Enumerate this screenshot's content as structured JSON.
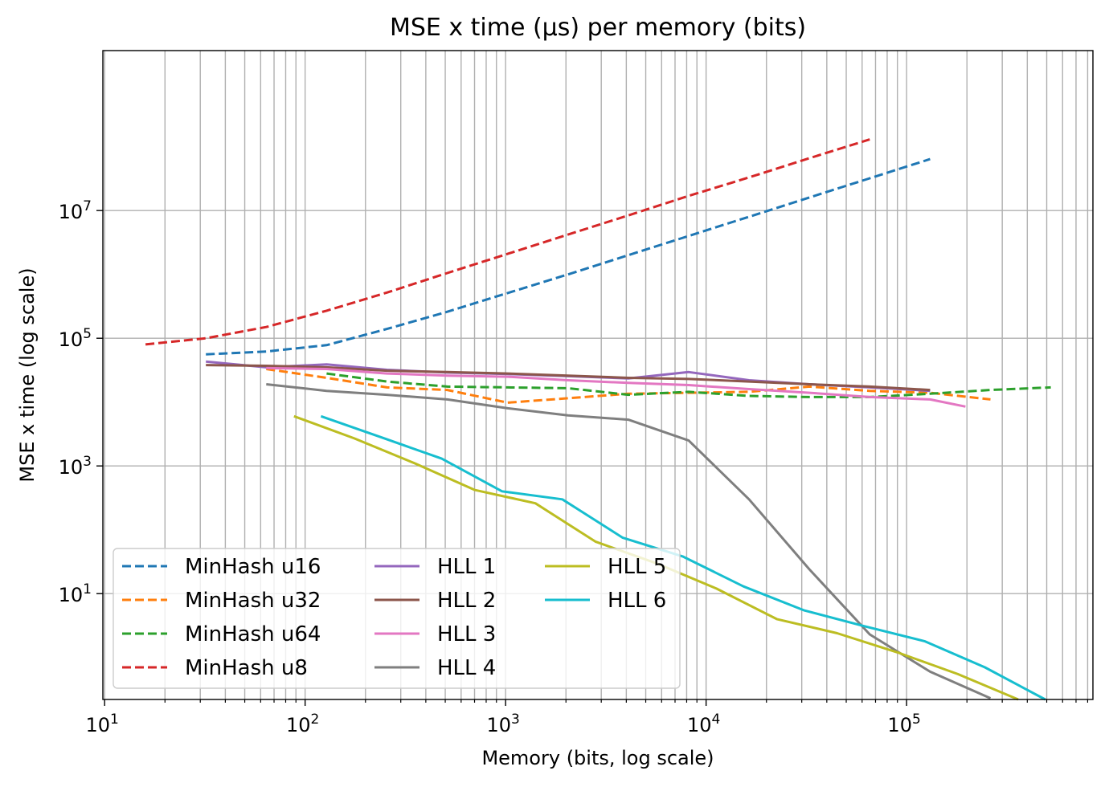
{
  "chart_data": {
    "type": "line",
    "title": "MSE x time (µs) per memory (bits)",
    "xlabel": "Memory (bits, log scale)",
    "ylabel": "MSE x time (log scale)",
    "xscale": "log",
    "yscale": "log",
    "xlim": [
      9.8,
      850000
    ],
    "ylim": [
      0.22,
      3200000000
    ],
    "grid": {
      "x": "major+minor",
      "y": "major"
    },
    "x_ticks": [
      {
        "base": "10",
        "exp": "1",
        "value": 10
      },
      {
        "base": "10",
        "exp": "2",
        "value": 100
      },
      {
        "base": "10",
        "exp": "3",
        "value": 1000
      },
      {
        "base": "10",
        "exp": "4",
        "value": 10000
      },
      {
        "base": "10",
        "exp": "5",
        "value": 100000
      }
    ],
    "y_ticks": [
      {
        "base": "10",
        "exp": "1",
        "value": 10
      },
      {
        "base": "10",
        "exp": "3",
        "value": 1000
      },
      {
        "base": "10",
        "exp": "5",
        "value": 100000
      },
      {
        "base": "10",
        "exp": "7",
        "value": 10000000
      }
    ],
    "legend": {
      "placement": "lower-left",
      "columns": 3
    },
    "series": [
      {
        "name": "MinHash u16",
        "style": "dashed",
        "color": "#1f77b4",
        "x": [
          32,
          64,
          128,
          256,
          512,
          1024,
          2048,
          4096,
          8192,
          16384,
          32768,
          65536,
          131072
        ],
        "y": [
          56000,
          62000,
          78000,
          140000,
          260000,
          510000,
          1000000,
          2000000,
          4000000,
          8000000,
          16000000,
          32000000,
          64000000
        ]
      },
      {
        "name": "MinHash u32",
        "style": "dashed",
        "color": "#ff7f0e",
        "x": [
          64,
          128,
          256,
          512,
          1024,
          2048,
          4096,
          8192,
          16384,
          32768,
          65536,
          131072,
          262144
        ],
        "y": [
          33000,
          24000,
          17000,
          15500,
          9800,
          11500,
          13500,
          14000,
          14500,
          17500,
          15000,
          14000,
          11000
        ]
      },
      {
        "name": "MinHash u64",
        "style": "dashed",
        "color": "#2ca02c",
        "x": [
          128,
          256,
          512,
          1024,
          2048,
          4096,
          8192,
          16384,
          32768,
          65536,
          131072,
          262144,
          524288
        ],
        "y": [
          28000,
          21000,
          17500,
          17000,
          16500,
          13000,
          14500,
          12500,
          12000,
          12000,
          13500,
          15500,
          17000
        ]
      },
      {
        "name": "MinHash u8",
        "style": "dashed",
        "color": "#d62728",
        "x": [
          16,
          32,
          64,
          128,
          256,
          512,
          1024,
          2048,
          4096,
          8192,
          16384,
          32768,
          65536
        ],
        "y": [
          80000,
          100000,
          150000,
          270000,
          520000,
          1050000,
          2100000,
          4200000,
          8400000,
          17000000,
          33000000,
          66000000,
          130000000
        ]
      },
      {
        "name": "HLL 1",
        "style": "solid",
        "color": "#9467bd",
        "x": [
          32,
          64,
          128,
          256,
          512,
          1024,
          2048,
          4096,
          8192,
          16384,
          32768,
          65536,
          131072
        ],
        "y": [
          43000,
          35000,
          39000,
          32000,
          29000,
          27500,
          25500,
          23500,
          29500,
          22000,
          19000,
          17000,
          15000
        ]
      },
      {
        "name": "HLL 2",
        "style": "solid",
        "color": "#8c564b",
        "x": [
          32,
          64,
          128,
          256,
          512,
          1024,
          2048,
          4096,
          8192,
          16384,
          32768,
          65536,
          131072
        ],
        "y": [
          38000,
          37000,
          35000,
          31000,
          29500,
          28000,
          26000,
          24000,
          23000,
          21000,
          19000,
          17500,
          15500
        ]
      },
      {
        "name": "HLL 3",
        "style": "solid",
        "color": "#e377c2",
        "x": [
          64,
          128,
          256,
          512,
          1024,
          2048,
          4096,
          8192,
          16384,
          32768,
          65536,
          131072,
          196608
        ],
        "y": [
          34000,
          33000,
          28000,
          26000,
          25000,
          22000,
          20000,
          18500,
          16000,
          14000,
          12000,
          11000,
          8500
        ]
      },
      {
        "name": "HLL 4",
        "style": "solid",
        "color": "#7f7f7f",
        "x": [
          64,
          128,
          256,
          512,
          1024,
          2048,
          4096,
          8192,
          16384,
          32768,
          65536,
          131072,
          262144
        ],
        "y": [
          19000,
          15000,
          13000,
          11000,
          8000,
          6200,
          5300,
          2500,
          300,
          24,
          2.3,
          0.6,
          0.23
        ]
      },
      {
        "name": "HLL 5",
        "style": "solid",
        "color": "#bcbd22",
        "x": [
          88,
          176,
          352,
          704,
          1408,
          2816,
          5632,
          11264,
          22528,
          45056,
          90112,
          180224,
          360448
        ],
        "y": [
          6000,
          2700,
          1100,
          420,
          260,
          65,
          30,
          12,
          4,
          2.4,
          1.2,
          0.55,
          0.22
        ]
      },
      {
        "name": "HLL 6",
        "style": "solid",
        "color": "#17becf",
        "x": [
          120,
          240,
          480,
          960,
          1920,
          3840,
          7680,
          15360,
          30720,
          61440,
          122880,
          245760,
          491520
        ],
        "y": [
          6000,
          2800,
          1300,
          400,
          300,
          75,
          38,
          13,
          5.5,
          3.1,
          1.8,
          0.7,
          0.22
        ]
      }
    ]
  }
}
